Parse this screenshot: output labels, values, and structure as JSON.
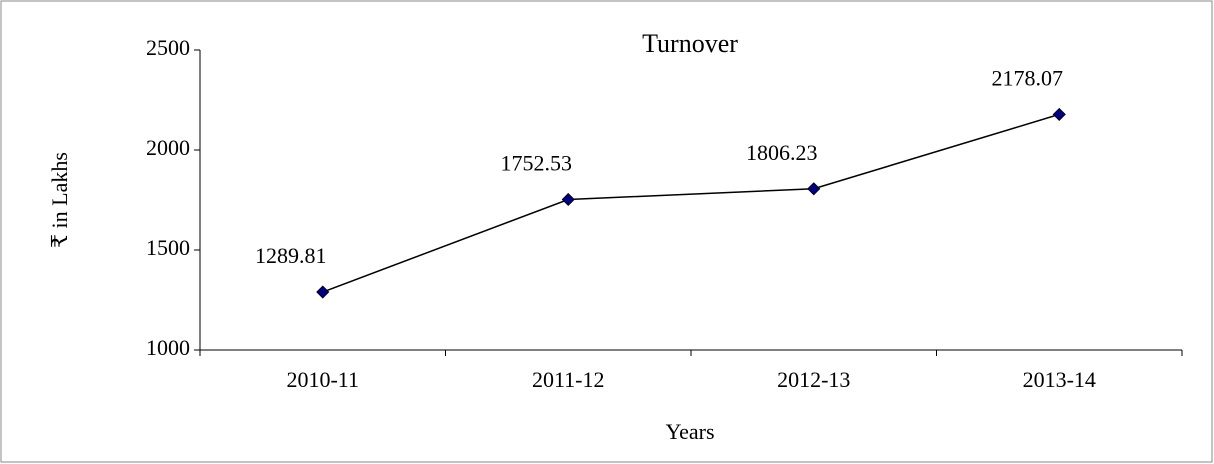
{
  "chart_data": {
    "type": "line",
    "title": "Turnover",
    "x_label": "Years",
    "y_label": "₹ in Lakhs",
    "categories": [
      "2010-11",
      "2011-12",
      "2012-13",
      "2013-14"
    ],
    "values": [
      1289.81,
      1752.53,
      1806.23,
      2178.07
    ],
    "color": "#000080",
    "line_color": "#000000",
    "ylim": [
      1000,
      2500
    ],
    "yticks": [
      1000,
      1500,
      2000,
      2500
    ],
    "grid": false,
    "data_labels": true
  }
}
